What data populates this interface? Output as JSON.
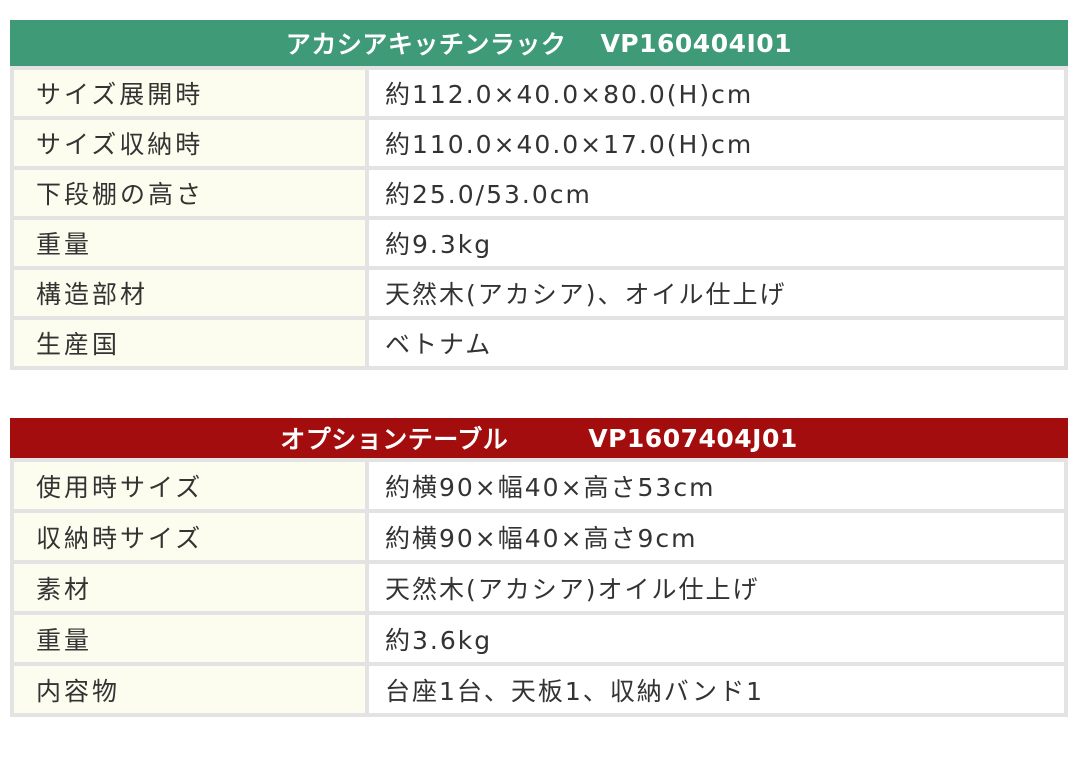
{
  "rack": {
    "title": "アカシアキッチンラック",
    "code": "VP160404I01",
    "color": "#3f9a77",
    "rows": [
      {
        "label": "サイズ展開時",
        "value": "約112.0×40.0×80.0(H)cm"
      },
      {
        "label": "サイズ収納時",
        "value": "約110.0×40.0×17.0(H)cm"
      },
      {
        "label": "下段棚の高さ",
        "value": "約25.0/53.0cm"
      },
      {
        "label": "重量",
        "value": "約9.3kg"
      },
      {
        "label": "構造部材",
        "value": "天然木(アカシア)、オイル仕上げ"
      },
      {
        "label": "生産国",
        "value": "ベトナム"
      }
    ]
  },
  "table": {
    "title": "オプションテーブル",
    "code": "VP1607404J01",
    "color": "#a30d0d",
    "rows": [
      {
        "label": "使用時サイズ",
        "value": "約横90×幅40×高さ53cm"
      },
      {
        "label": "収納時サイズ",
        "value": "約横90×幅40×高さ9cm"
      },
      {
        "label": "素材",
        "value": "天然木(アカシア)オイル仕上げ"
      },
      {
        "label": "重量",
        "value": "約3.6kg"
      },
      {
        "label": "内容物",
        "value": "台座1台、天板1、収納バンド1"
      }
    ]
  }
}
